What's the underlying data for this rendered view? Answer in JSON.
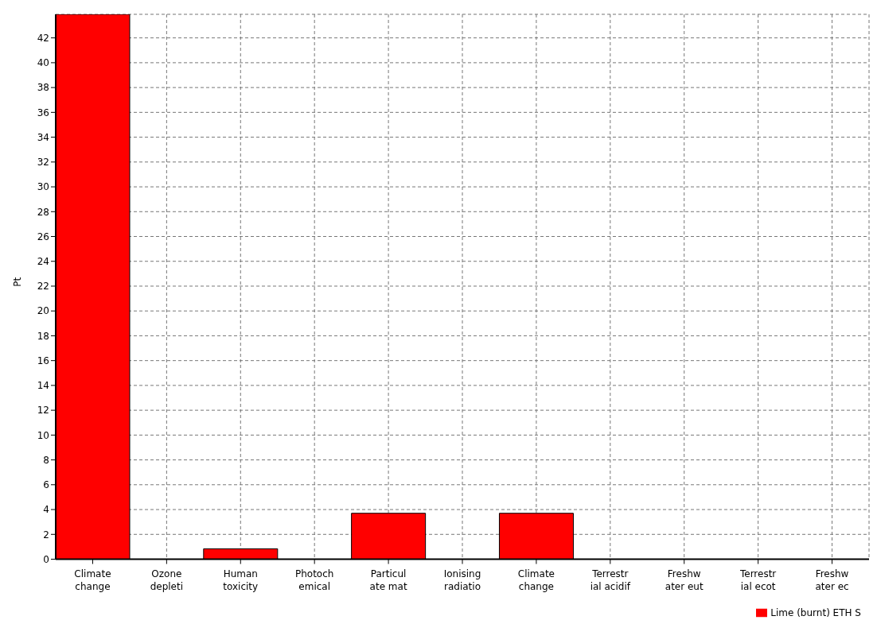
{
  "chart_data": {
    "type": "bar",
    "ylabel": "Pt",
    "categories": [
      "Climate\nchange",
      "Ozone\ndepleti",
      "Human\ntoxicity",
      "Photoch\nemical",
      "Particul\nate mat",
      "Ionising\nradiatio",
      "Climate\nchange",
      "Terrestr\nial acidif",
      "Freshw\nater eut",
      "Terrestr\nial ecot",
      "Freshw\nater ec"
    ],
    "series": [
      {
        "name": "Lime (burnt) ETH  S",
        "color": "#ff0000",
        "values": [
          43.9,
          0,
          0.84,
          0,
          3.7,
          0,
          3.7,
          0,
          0,
          0,
          0
        ]
      }
    ],
    "ylim": [
      0,
      43.9
    ],
    "yticks": [
      0,
      2,
      4,
      6,
      8,
      10,
      12,
      14,
      16,
      18,
      20,
      22,
      24,
      26,
      28,
      30,
      32,
      34,
      36,
      38,
      40,
      42
    ],
    "grid": true,
    "legend": "bottom right"
  }
}
